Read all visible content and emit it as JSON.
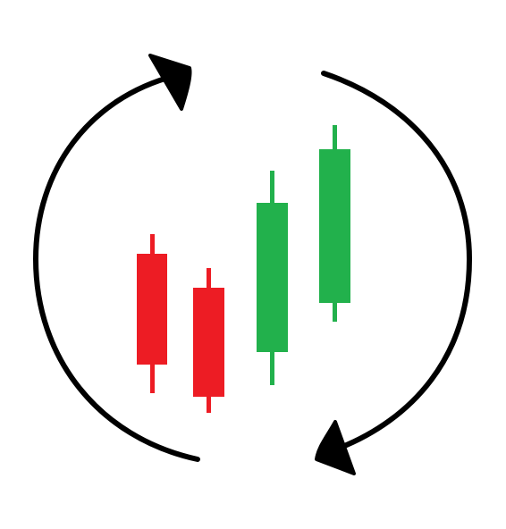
{
  "illustration": {
    "icon": "candlestick-cycle-icon",
    "colors": {
      "background": "#ffffff",
      "arrows": "#000000",
      "bearish": "#ed1c24",
      "bullish": "#22b14c"
    },
    "candles": [
      {
        "direction": "bearish"
      },
      {
        "direction": "bearish"
      },
      {
        "direction": "bullish"
      },
      {
        "direction": "bullish"
      }
    ]
  }
}
